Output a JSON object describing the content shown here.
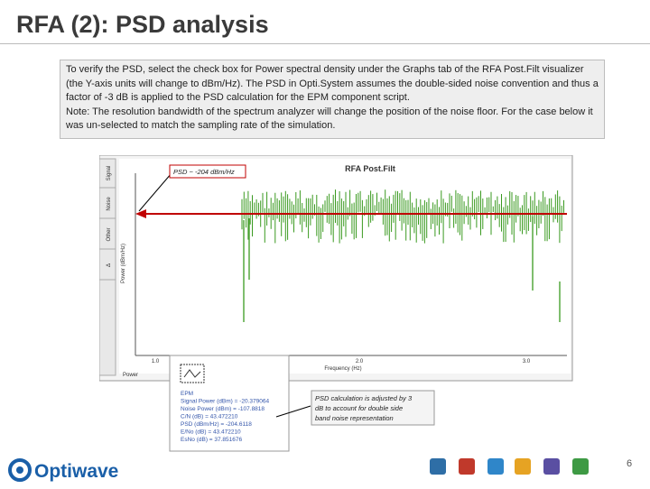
{
  "slide": {
    "title": "RFA (2): PSD analysis",
    "paragraphs": [
      "To verify the PSD, select the check box for Power spectral density under the Graphs tab of the RFA Post.Filt visualizer (the Y-axis units will change to dBm/Hz). The PSD in Opti.System assumes the double-sided noise convention and thus a factor of -3 dB is applied to the PSD calculation for the EPM component script.",
      "Note: The resolution bandwidth of the spectrum analyzer will change the position of the noise floor. For the case below it was un-selected to match the sampling rate of the simulation."
    ],
    "page_number": "6",
    "logo": "Optiwave"
  },
  "screenshot": {
    "tabs": [
      "Signal",
      "Noise",
      "Other",
      "Δ"
    ],
    "plot_title": "RFA Post.Filt",
    "y_axis_label": "Power (dBm/Hz)",
    "x_axis_label": "Frequency (Hz)",
    "x_tick_labels": [
      "1.0",
      "2.0",
      "3.0"
    ],
    "bottom_tab": "Power",
    "annotation_psd": "PSD ~ -204 dBm/Hz",
    "annotation_calc": "PSD calculation is adjusted by 3 dB to account for double side band noise representation",
    "info_lines": [
      "EPM",
      "Signal Power (dBm) = -20.379064",
      "Noise Power (dBm) = -107.8818",
      "C/N (dB) = 43.472210",
      "PSD (dBm/Hz) = -204.6118",
      "E/No (dB) = 43.472210",
      "EsNo (dB) = 37.851676"
    ]
  }
}
